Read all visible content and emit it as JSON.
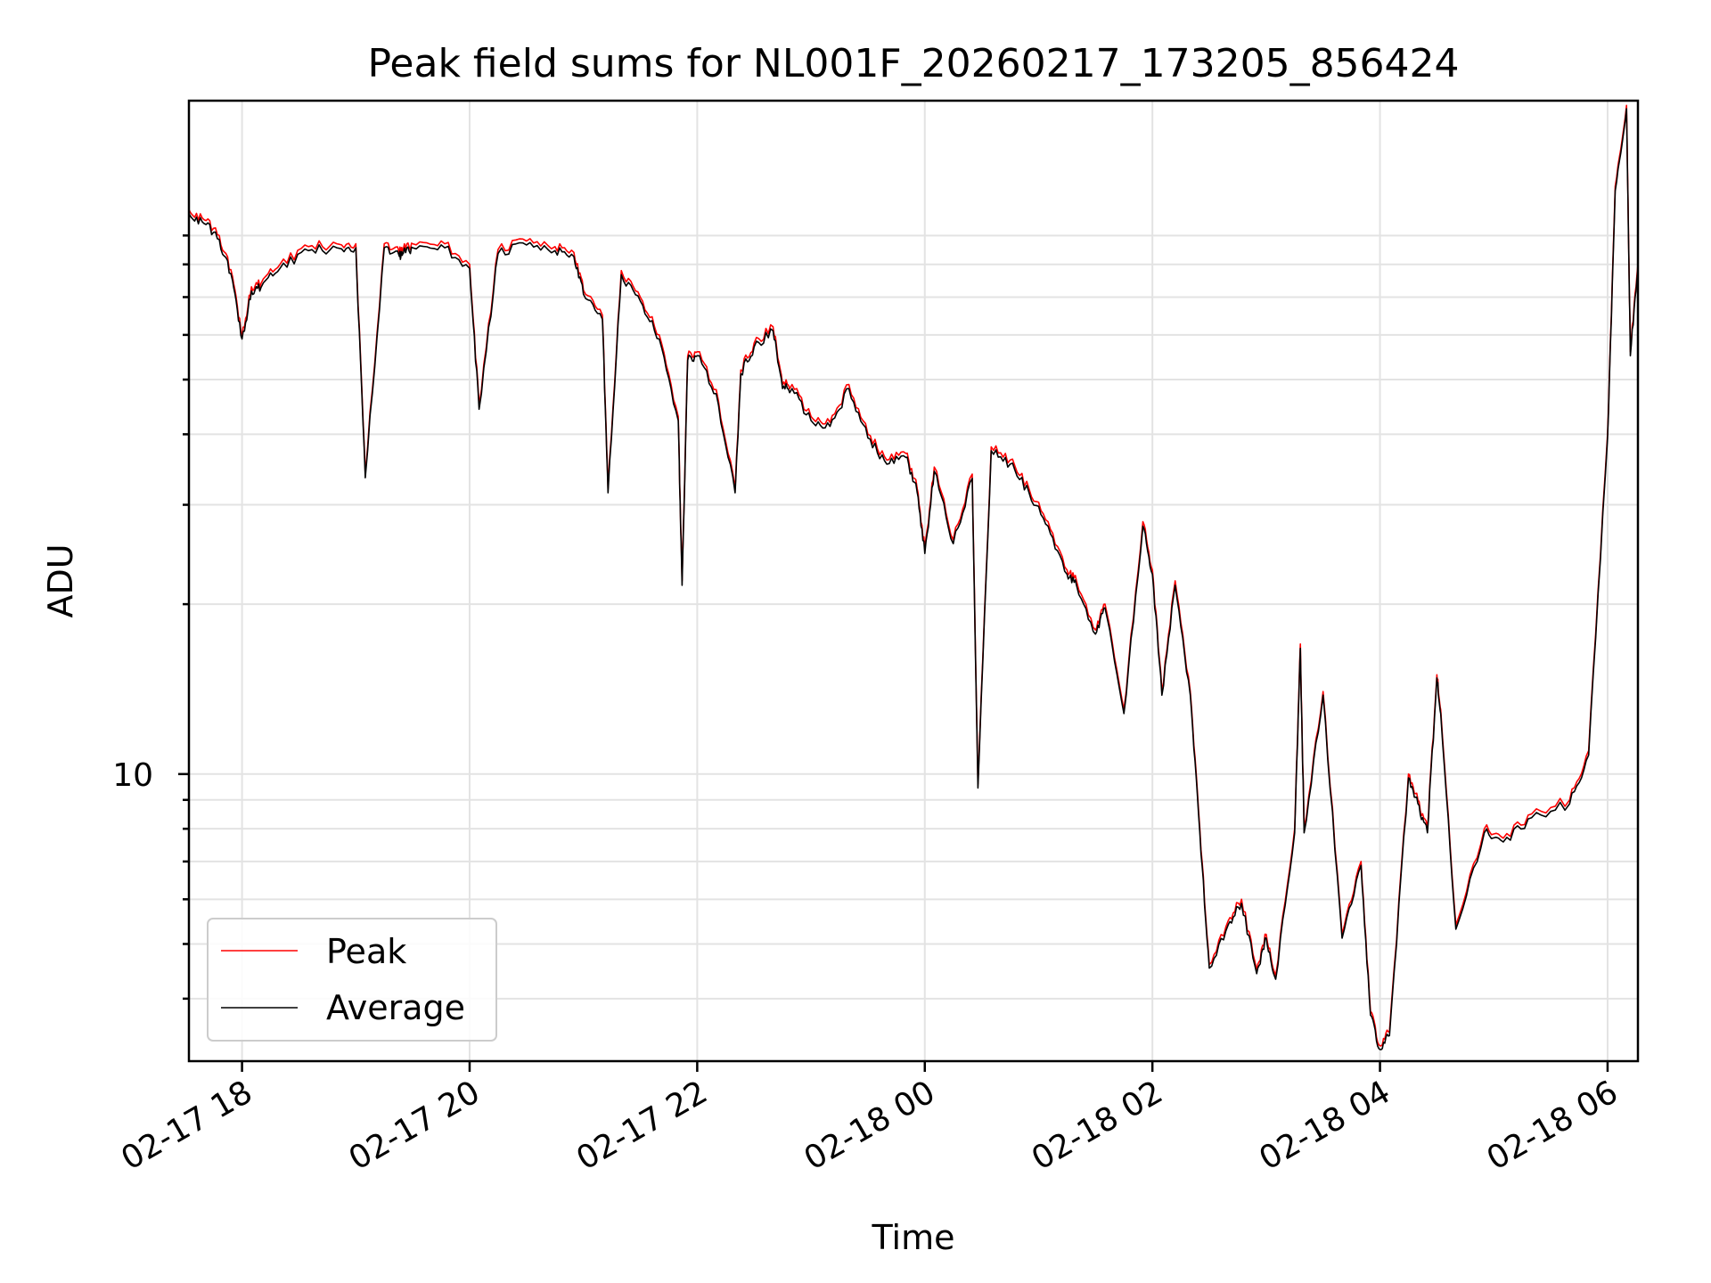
{
  "chart_data": {
    "type": "line",
    "title": "Peak field sums for NL001F_20260217_173205_856424",
    "xlabel": "Time",
    "ylabel": "ADU",
    "yscale": "log",
    "ylim": [
      31000000,
      1560000000
    ],
    "xlim": [
      "2026-02-17 17:32",
      "2026-02-18 06:16"
    ],
    "x_ticks": [
      "02-17 18",
      "02-17 20",
      "02-17 22",
      "02-18 00",
      "02-18 02",
      "02-18 04",
      "02-18 06"
    ],
    "y_ticks": [
      {
        "value": 100000000,
        "base": "10",
        "exponent": "8"
      }
    ],
    "grid": true,
    "legend_placement": "lower left",
    "colors": {
      "Peak": "#ff0000",
      "Average": "#000000"
    },
    "x": [
      "17:32",
      "17:40",
      "17:48",
      "17:55",
      "18:00",
      "18:05",
      "18:10",
      "18:20",
      "18:35",
      "18:50",
      "19:00",
      "19:05",
      "19:15",
      "19:23",
      "19:25",
      "19:30",
      "19:45",
      "20:00",
      "20:05",
      "20:15",
      "20:30",
      "20:45",
      "20:55",
      "21:00",
      "21:10",
      "21:13",
      "21:20",
      "21:30",
      "21:40",
      "21:50",
      "21:52",
      "21:55",
      "22:00",
      "22:10",
      "22:20",
      "22:23",
      "22:30",
      "22:40",
      "22:45",
      "22:50",
      "23:00",
      "23:10",
      "23:20",
      "23:30",
      "23:40",
      "23:50",
      "23:56",
      "24:00",
      "24:05",
      "24:15",
      "24:25",
      "24:28",
      "24:35",
      "24:45",
      "24:55",
      "25:05",
      "25:15",
      "25:20",
      "25:30",
      "25:35",
      "25:45",
      "25:55",
      "26:00",
      "26:05",
      "26:12",
      "26:20",
      "26:25",
      "26:30",
      "26:40",
      "26:47",
      "26:55",
      "27:00",
      "27:05",
      "27:15",
      "27:18",
      "27:20",
      "27:30",
      "27:40",
      "27:50",
      "27:55",
      "28:00",
      "28:05",
      "28:15",
      "28:20",
      "28:25",
      "28:30",
      "28:32",
      "28:40",
      "28:55",
      "29:05",
      "29:20",
      "29:40",
      "29:50",
      "30:00",
      "30:04",
      "30:10",
      "30:12",
      "30:16"
    ],
    "series": [
      {
        "name": "Peak",
        "values": [
          1000000000,
          960000000,
          900000000,
          760000000,
          600000000,
          730000000,
          740000000,
          800000000,
          860000000,
          870000000,
          870000000,
          340000000,
          870000000,
          840000000,
          850000000,
          870000000,
          880000000,
          800000000,
          450000000,
          850000000,
          880000000,
          860000000,
          840000000,
          720000000,
          650000000,
          320000000,
          780000000,
          700000000,
          600000000,
          430000000,
          220000000,
          550000000,
          560000000,
          480000000,
          320000000,
          520000000,
          580000000,
          620000000,
          490000000,
          490000000,
          430000000,
          420000000,
          490000000,
          400000000,
          360000000,
          370000000,
          320000000,
          250000000,
          350000000,
          260000000,
          340000000,
          96000000,
          380000000,
          360000000,
          320000000,
          280000000,
          230000000,
          220000000,
          180000000,
          200000000,
          130000000,
          280000000,
          230000000,
          140000000,
          220000000,
          140000000,
          80000000,
          46000000,
          55000000,
          60000000,
          45000000,
          52000000,
          44000000,
          80000000,
          170000000,
          80000000,
          140000000,
          52000000,
          70000000,
          38000000,
          33000000,
          35000000,
          100000000,
          90000000,
          80000000,
          150000000,
          130000000,
          54000000,
          80000000,
          77000000,
          85000000,
          90000000,
          110000000,
          400000000,
          1100000000,
          1530000000,
          560000000,
          800000000
        ]
      },
      {
        "name": "Average",
        "values": [
          985000000,
          945000000,
          885000000,
          748000000,
          590000000,
          718000000,
          728000000,
          787000000,
          846000000,
          856000000,
          856000000,
          335000000,
          856000000,
          826000000,
          836000000,
          856000000,
          866000000,
          787000000,
          443000000,
          836000000,
          866000000,
          846000000,
          826000000,
          708000000,
          639000000,
          315000000,
          767000000,
          689000000,
          590000000,
          423000000,
          216000000,
          541000000,
          551000000,
          472000000,
          315000000,
          512000000,
          571000000,
          610000000,
          482000000,
          482000000,
          423000000,
          413000000,
          482000000,
          394000000,
          354000000,
          364000000,
          315000000,
          246000000,
          344000000,
          256000000,
          334000000,
          94500000,
          374000000,
          354000000,
          315000000,
          275000000,
          226000000,
          216000000,
          177000000,
          197000000,
          128000000,
          275000000,
          226000000,
          138000000,
          216000000,
          138000000,
          78700000,
          45300000,
          54100000,
          59000000,
          44300000,
          51200000,
          43300000,
          78700000,
          167000000,
          78700000,
          138000000,
          51200000,
          68900000,
          37400000,
          32500000,
          34400000,
          98500000,
          88600000,
          78700000,
          148000000,
          128000000,
          53100000,
          78700000,
          75800000,
          83700000,
          88600000,
          108000000,
          394000000,
          1080000000,
          1510000000,
          551000000,
          787000000
        ]
      }
    ]
  },
  "legend": {
    "peak_label": "Peak",
    "average_label": "Average"
  }
}
